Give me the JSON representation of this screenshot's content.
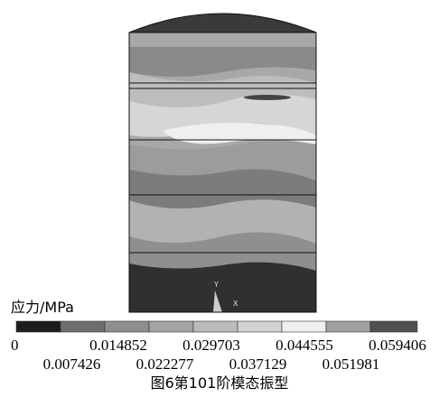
{
  "figure": {
    "axis_labels": [
      "Y",
      "X"
    ],
    "legend": {
      "title": "应力/MPa",
      "labels": [
        "0",
        "0.007426",
        "0.014852",
        "0.022277",
        "0.029703",
        "0.037129",
        "0.044555",
        "0.051981",
        "0.059406"
      ]
    },
    "caption": "图6第101阶模态振型"
  }
}
